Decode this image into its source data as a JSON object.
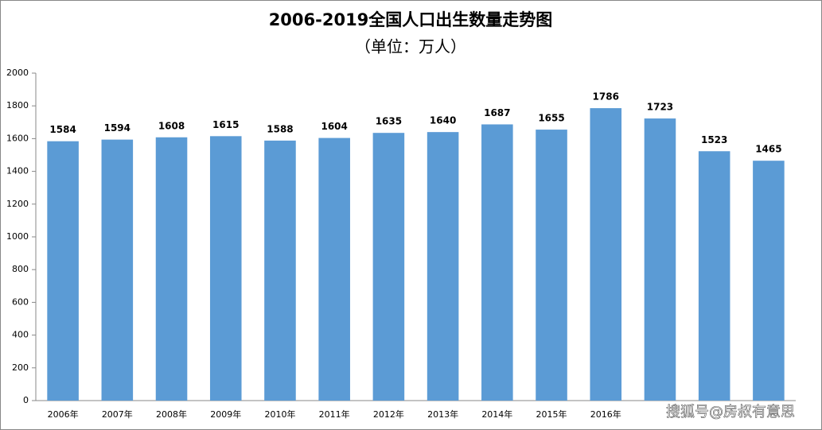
{
  "chart_data": {
    "type": "bar",
    "title": "2006-2019全国人口出生数量走势图",
    "subtitle": "（单位：万人）",
    "categories": [
      "2006年",
      "2007年",
      "2008年",
      "2009年",
      "2010年",
      "2011年",
      "2012年",
      "2013年",
      "2014年",
      "2015年",
      "2016年",
      null,
      null,
      null
    ],
    "values": [
      1584,
      1594,
      1608,
      1615,
      1588,
      1604,
      1635,
      1640,
      1687,
      1655,
      1786,
      1723,
      1523,
      1465
    ],
    "color": "#5b9bd5",
    "ylim": [
      0,
      2000
    ],
    "yticks": [
      0,
      200,
      400,
      600,
      800,
      1000,
      1200,
      1400,
      1600,
      1800,
      2000
    ],
    "grid": false,
    "watermark": "搜狐号@房叔有意思"
  }
}
